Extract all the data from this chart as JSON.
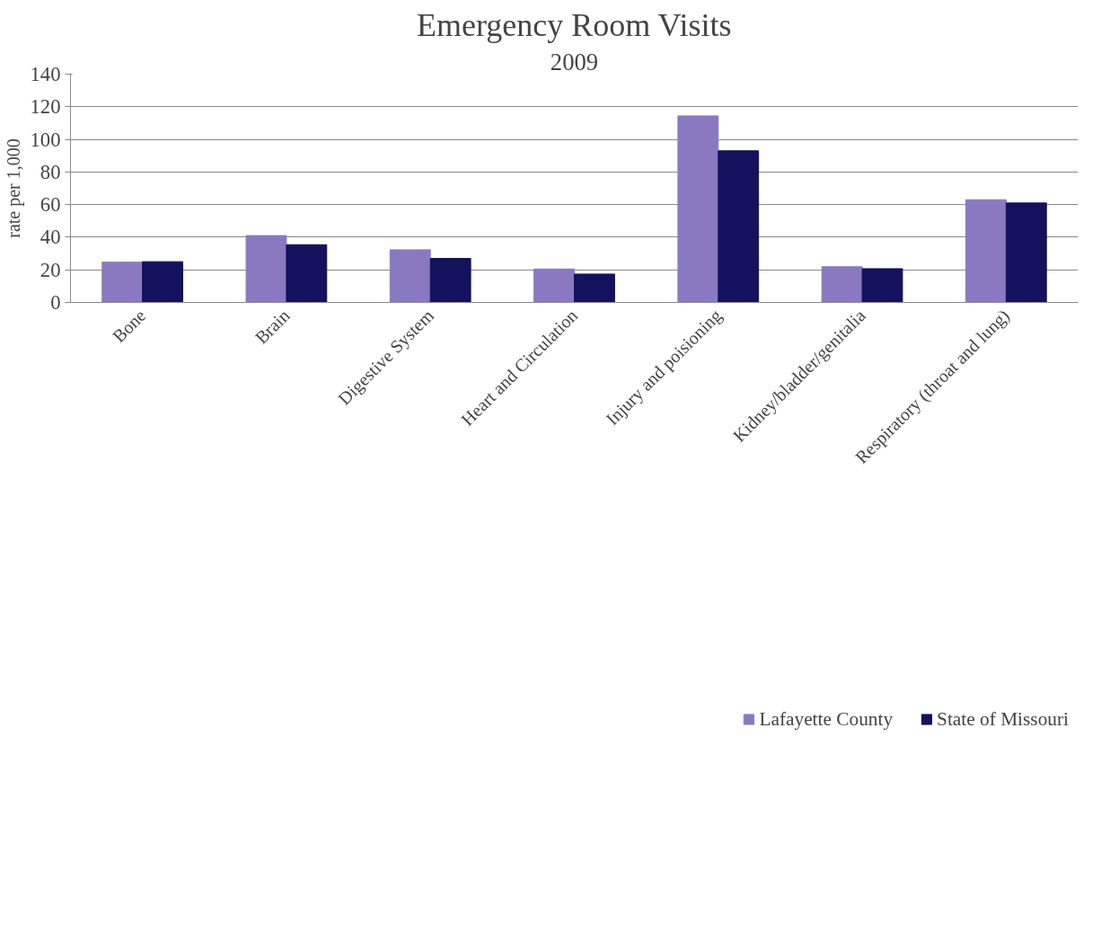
{
  "chart_data": {
    "type": "bar",
    "title": "Emergency Room Visits",
    "subtitle": "2009",
    "ylabel": "rate per 1,000",
    "categories": [
      "Bone",
      "Brain",
      "Digestive System",
      "Heart and Circulation",
      "Injury and poisioning",
      "Kidney/bladder/genitalia",
      "Respiratory (throat and lung)"
    ],
    "series": [
      {
        "name": "Lafayette County",
        "color": "#8a79c0",
        "values": [
          24.7,
          41,
          32.3,
          20.5,
          114.4,
          21.9,
          63
        ]
      },
      {
        "name": "State of Missouri",
        "color": "#14125c",
        "values": [
          25,
          35.4,
          27,
          17.4,
          93,
          20.7,
          61
        ]
      }
    ],
    "ylim": [
      0,
      140
    ],
    "yticks": [
      0,
      20,
      40,
      60,
      80,
      100,
      120,
      140
    ],
    "grid": "y",
    "legend": "bottom"
  }
}
